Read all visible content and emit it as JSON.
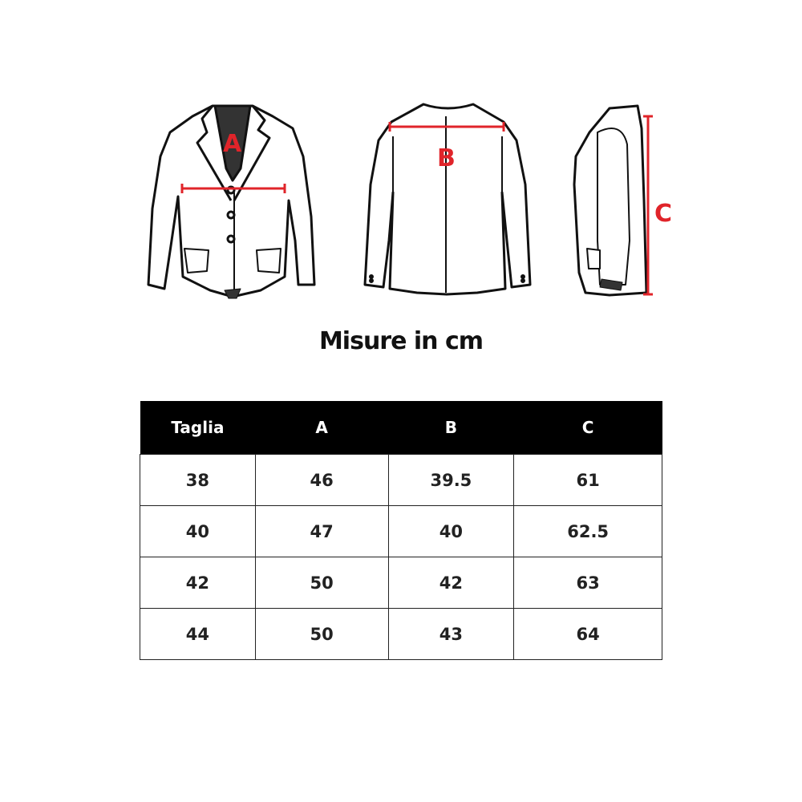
{
  "illustrations": {
    "labels": {
      "front": "A",
      "back": "B",
      "side": "C"
    },
    "measure_color": "#e0242a"
  },
  "title": "Misure in cm",
  "table": {
    "headers": [
      "Taglia",
      "A",
      "B",
      "C"
    ],
    "rows": [
      [
        "38",
        "46",
        "39.5",
        "61"
      ],
      [
        "40",
        "47",
        "40",
        "62.5"
      ],
      [
        "42",
        "50",
        "42",
        "63"
      ],
      [
        "44",
        "50",
        "43",
        "64"
      ]
    ]
  }
}
